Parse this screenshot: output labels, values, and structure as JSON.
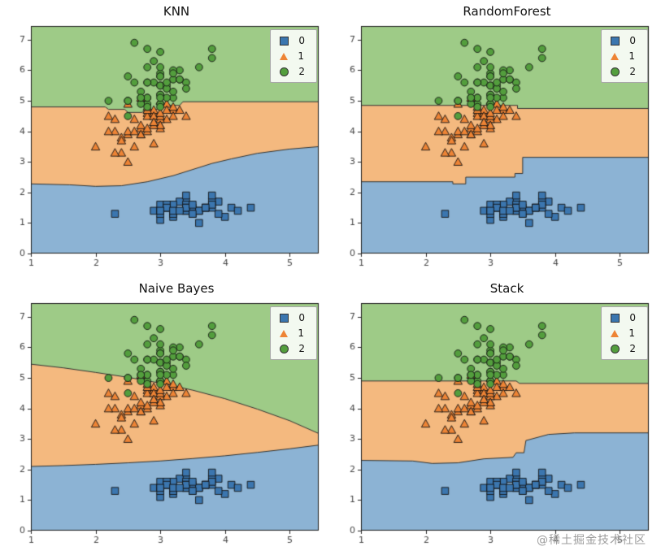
{
  "figure": {
    "background": "#ffffff"
  },
  "watermark": "@稀土掘金技术社区",
  "chart_data": {
    "type": "scatter",
    "description": "2x2 grid of classifier decision region plots with shared scatter data",
    "xlim": [
      1,
      5.45
    ],
    "ylim": [
      0,
      7.45
    ],
    "xticks": [
      1,
      2,
      3,
      4,
      5
    ],
    "yticks": [
      0,
      1,
      2,
      3,
      4,
      5,
      6,
      7
    ],
    "grid": false,
    "legend": {
      "labels": [
        "0",
        "1",
        "2"
      ],
      "position": "upper right"
    },
    "region_colors": [
      "#8cb3d4",
      "#f4b97f",
      "#9ecb87"
    ],
    "boundary_line_color": "#333333",
    "classes": [
      {
        "label": "0",
        "marker": "square",
        "color": "#3b76af",
        "x": [
          3.5,
          3.0,
          3.2,
          3.1,
          3.6,
          3.9,
          3.4,
          3.4,
          2.9,
          3.1,
          3.7,
          3.4,
          3.0,
          3.0,
          4.0,
          4.4,
          3.9,
          3.5,
          3.8,
          3.8,
          3.4,
          3.7,
          3.6,
          3.3,
          3.4,
          3.0,
          3.4,
          3.5,
          3.4,
          3.2,
          3.1,
          3.4,
          4.1,
          4.2,
          3.1,
          3.2,
          3.5,
          3.6,
          3.0,
          3.4,
          3.5,
          2.3,
          3.2,
          3.5,
          3.8,
          3.0,
          3.8,
          3.2,
          3.7,
          3.3
        ],
        "y": [
          1.4,
          1.4,
          1.3,
          1.5,
          1.4,
          1.7,
          1.4,
          1.5,
          1.4,
          1.5,
          1.5,
          1.6,
          1.4,
          1.1,
          1.2,
          1.5,
          1.3,
          1.4,
          1.7,
          1.5,
          1.7,
          1.5,
          1.0,
          1.7,
          1.9,
          1.6,
          1.6,
          1.5,
          1.4,
          1.6,
          1.6,
          1.5,
          1.5,
          1.4,
          1.5,
          1.2,
          1.3,
          1.4,
          1.3,
          1.5,
          1.3,
          1.3,
          1.3,
          1.6,
          1.9,
          1.4,
          1.6,
          1.4,
          1.5,
          1.4
        ]
      },
      {
        "label": "1",
        "marker": "triangle",
        "color": "#ee8435",
        "x": [
          3.2,
          3.2,
          3.1,
          2.3,
          2.8,
          2.8,
          3.3,
          2.4,
          2.9,
          2.7,
          2.0,
          3.0,
          2.2,
          2.9,
          2.9,
          3.1,
          3.0,
          2.7,
          2.2,
          2.5,
          3.2,
          2.8,
          2.5,
          2.8,
          2.9,
          3.0,
          2.8,
          3.0,
          2.9,
          2.6,
          2.4,
          2.4,
          2.7,
          2.7,
          3.0,
          3.4,
          3.1,
          2.3,
          3.0,
          2.5,
          2.6,
          3.0,
          2.6,
          2.3,
          2.7,
          3.0,
          2.9,
          2.9,
          2.5,
          2.8
        ],
        "y": [
          4.7,
          4.5,
          4.9,
          4.0,
          4.6,
          4.5,
          4.7,
          3.3,
          4.6,
          3.9,
          3.5,
          4.2,
          4.0,
          4.7,
          3.6,
          4.4,
          4.5,
          4.1,
          4.5,
          3.9,
          4.8,
          4.0,
          4.9,
          4.7,
          4.3,
          4.4,
          4.8,
          5.0,
          4.5,
          3.5,
          3.8,
          3.7,
          3.9,
          5.1,
          4.5,
          4.5,
          4.7,
          4.4,
          4.1,
          4.0,
          4.4,
          4.6,
          4.0,
          3.3,
          4.2,
          4.2,
          4.2,
          4.3,
          3.0,
          4.1
        ]
      },
      {
        "label": "2",
        "marker": "circle",
        "color": "#539e3d",
        "x": [
          3.3,
          2.7,
          3.0,
          2.9,
          3.0,
          3.0,
          2.5,
          2.9,
          2.5,
          3.6,
          3.2,
          2.7,
          3.0,
          2.5,
          2.8,
          3.2,
          3.0,
          3.8,
          2.6,
          2.2,
          3.2,
          2.8,
          2.8,
          2.7,
          3.3,
          3.2,
          2.8,
          3.0,
          2.8,
          3.0,
          2.8,
          3.8,
          2.8,
          2.8,
          2.6,
          3.0,
          3.4,
          3.1,
          3.0,
          3.1,
          3.1,
          3.1,
          2.7,
          3.2,
          3.3,
          3.0,
          2.5,
          3.0,
          3.4,
          3.0
        ],
        "y": [
          6.0,
          5.1,
          5.9,
          5.6,
          5.8,
          6.6,
          4.5,
          6.3,
          5.8,
          6.1,
          5.1,
          5.3,
          5.5,
          5.0,
          5.1,
          5.3,
          5.5,
          6.7,
          6.9,
          5.0,
          5.7,
          4.9,
          6.7,
          4.9,
          5.7,
          6.0,
          4.8,
          4.9,
          5.6,
          5.8,
          6.1,
          6.4,
          5.6,
          5.1,
          5.6,
          6.1,
          5.6,
          5.5,
          4.8,
          5.4,
          5.6,
          5.1,
          5.1,
          5.9,
          5.7,
          5.2,
          5.0,
          5.2,
          5.4,
          5.1
        ]
      }
    ],
    "subplots": [
      {
        "title": "KNN",
        "boundary_class0_class1": [
          [
            1.0,
            2.28
          ],
          [
            1.6,
            2.25
          ],
          [
            2.0,
            2.2
          ],
          [
            2.4,
            2.22
          ],
          [
            2.8,
            2.35
          ],
          [
            3.0,
            2.45
          ],
          [
            3.2,
            2.55
          ],
          [
            3.5,
            2.75
          ],
          [
            3.8,
            2.95
          ],
          [
            4.1,
            3.1
          ],
          [
            4.5,
            3.28
          ],
          [
            5.0,
            3.42
          ],
          [
            5.45,
            3.5
          ]
        ],
        "boundary_class1_class2": [
          [
            1.0,
            4.8
          ],
          [
            2.15,
            4.8
          ],
          [
            2.2,
            4.72
          ],
          [
            2.45,
            4.72
          ],
          [
            2.5,
            4.62
          ],
          [
            2.72,
            4.62
          ],
          [
            2.78,
            4.72
          ],
          [
            3.0,
            4.72
          ],
          [
            3.05,
            4.85
          ],
          [
            3.3,
            4.85
          ],
          [
            3.35,
            4.97
          ],
          [
            5.45,
            4.97
          ]
        ]
      },
      {
        "title": "RandomForest",
        "boundary_class0_class1": [
          [
            1.0,
            2.35
          ],
          [
            2.42,
            2.35
          ],
          [
            2.42,
            2.28
          ],
          [
            2.62,
            2.28
          ],
          [
            2.62,
            2.5
          ],
          [
            3.38,
            2.5
          ],
          [
            3.38,
            2.62
          ],
          [
            3.5,
            2.62
          ],
          [
            3.5,
            3.15
          ],
          [
            5.45,
            3.15
          ]
        ],
        "boundary_class1_class2": [
          [
            1.0,
            4.85
          ],
          [
            3.42,
            4.85
          ],
          [
            3.42,
            4.75
          ],
          [
            5.45,
            4.75
          ]
        ]
      },
      {
        "title": "Naive Bayes",
        "boundary_class0_class1": [
          [
            1.0,
            2.1
          ],
          [
            1.5,
            2.13
          ],
          [
            2.0,
            2.17
          ],
          [
            2.5,
            2.22
          ],
          [
            3.0,
            2.28
          ],
          [
            3.5,
            2.36
          ],
          [
            4.0,
            2.45
          ],
          [
            4.5,
            2.56
          ],
          [
            5.0,
            2.68
          ],
          [
            5.45,
            2.8
          ]
        ],
        "boundary_class1_class2": [
          [
            1.0,
            5.45
          ],
          [
            1.5,
            5.33
          ],
          [
            2.0,
            5.18
          ],
          [
            2.5,
            5.02
          ],
          [
            3.0,
            4.83
          ],
          [
            3.5,
            4.6
          ],
          [
            4.0,
            4.32
          ],
          [
            4.5,
            3.98
          ],
          [
            5.0,
            3.6
          ],
          [
            5.45,
            3.18
          ]
        ]
      },
      {
        "title": "Stack",
        "boundary_class0_class1": [
          [
            1.0,
            2.3
          ],
          [
            1.8,
            2.28
          ],
          [
            2.1,
            2.2
          ],
          [
            2.5,
            2.22
          ],
          [
            2.9,
            2.35
          ],
          [
            3.35,
            2.4
          ],
          [
            3.4,
            2.55
          ],
          [
            3.52,
            2.55
          ],
          [
            3.55,
            2.95
          ],
          [
            3.9,
            3.15
          ],
          [
            4.3,
            3.2
          ],
          [
            5.45,
            3.2
          ]
        ],
        "boundary_class1_class2": [
          [
            1.0,
            4.9
          ],
          [
            3.4,
            4.9
          ],
          [
            3.45,
            4.82
          ],
          [
            5.45,
            4.82
          ]
        ]
      }
    ]
  }
}
